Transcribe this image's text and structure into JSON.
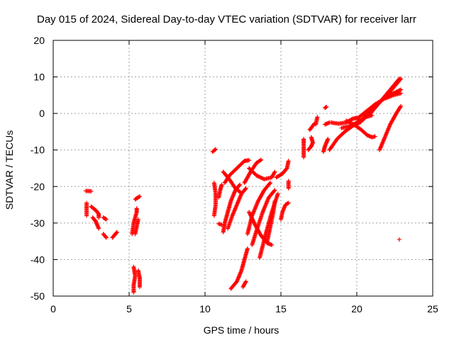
{
  "chart_data": {
    "type": "scatter",
    "title": "Day 015 of 2024, Sidereal Day-to-day VTEC variation (SDTVAR) for receiver larr",
    "xlabel": "GPS time / hours",
    "ylabel": "SDTVAR / TECUs",
    "xlim": [
      0,
      25
    ],
    "ylim": [
      -50,
      20
    ],
    "xticks": [
      0,
      5,
      10,
      15,
      20,
      25
    ],
    "yticks": [
      -50,
      -40,
      -30,
      -20,
      -10,
      0,
      10,
      20
    ],
    "grid": true,
    "marker": "+",
    "color": "#ff0000",
    "series": [
      {
        "name": "SDTVAR",
        "tracks": [
          {
            "points": [
              [
                2.15,
                -21.2
              ],
              [
                2.5,
                -21.3
              ]
            ]
          },
          {
            "points": [
              [
                2.2,
                -24.5
              ],
              [
                2.2,
                -26.5
              ],
              [
                2.2,
                -28.0
              ]
            ]
          },
          {
            "points": [
              [
                2.5,
                -25.5
              ],
              [
                2.8,
                -26.5
              ],
              [
                3.0,
                -27.5
              ],
              [
                3.0,
                -28.5
              ]
            ]
          },
          {
            "points": [
              [
                2.6,
                -28.5
              ],
              [
                2.8,
                -29.5
              ],
              [
                2.9,
                -30.5
              ],
              [
                3.0,
                -31.5
              ]
            ]
          },
          {
            "points": [
              [
                3.3,
                -28.5
              ],
              [
                3.5,
                -29.0
              ]
            ]
          },
          {
            "points": [
              [
                3.3,
                -33.0
              ],
              [
                3.5,
                -34.0
              ]
            ]
          },
          {
            "points": [
              [
                3.9,
                -34.0
              ],
              [
                4.1,
                -33.0
              ],
              [
                4.2,
                -32.5
              ]
            ]
          },
          {
            "points": [
              [
                5.2,
                -33.0
              ],
              [
                5.3,
                -30.0
              ],
              [
                5.5,
                -27.0
              ],
              [
                5.5,
                -26.0
              ]
            ]
          },
          {
            "points": [
              [
                5.4,
                -23.5
              ],
              [
                5.6,
                -23.0
              ],
              [
                5.7,
                -22.7
              ]
            ]
          },
          {
            "points": [
              [
                5.6,
                -29.0
              ],
              [
                5.5,
                -31.0
              ],
              [
                5.4,
                -33.0
              ]
            ]
          },
          {
            "points": [
              [
                5.3,
                -42.0
              ],
              [
                5.4,
                -44.5
              ],
              [
                5.3,
                -47.0
              ],
              [
                5.3,
                -49.0
              ]
            ]
          },
          {
            "points": [
              [
                5.6,
                -43.0
              ],
              [
                5.7,
                -45.0
              ],
              [
                5.7,
                -47.5
              ]
            ]
          },
          {
            "points": [
              [
                10.5,
                -10.5
              ],
              [
                10.7,
                -9.8
              ]
            ]
          },
          {
            "points": [
              [
                10.6,
                -28.0
              ],
              [
                10.7,
                -25.0
              ],
              [
                10.7,
                -22.0
              ],
              [
                10.6,
                -19.0
              ]
            ]
          },
          {
            "points": [
              [
                10.9,
                -23.0
              ],
              [
                11.0,
                -21.0
              ],
              [
                11.1,
                -19.5
              ]
            ]
          },
          {
            "points": [
              [
                10.9,
                -30.2
              ],
              [
                11.1,
                -30.5
              ]
            ]
          },
          {
            "points": [
              [
                11.3,
                -19.0
              ],
              [
                11.6,
                -17.0
              ],
              [
                12.1,
                -15.0
              ],
              [
                12.6,
                -13.0
              ],
              [
                12.9,
                -12.8
              ]
            ]
          },
          {
            "points": [
              [
                11.2,
                -16.0
              ],
              [
                11.6,
                -18.0
              ],
              [
                12.0,
                -20.5
              ],
              [
                12.4,
                -21.8
              ]
            ]
          },
          {
            "points": [
              [
                11.2,
                -32.5
              ],
              [
                11.3,
                -30.0
              ],
              [
                11.5,
                -27.0
              ],
              [
                11.7,
                -24.0
              ],
              [
                12.0,
                -21.0
              ],
              [
                12.3,
                -19.5
              ]
            ]
          },
          {
            "points": [
              [
                11.5,
                -31.5
              ],
              [
                11.8,
                -28.0
              ],
              [
                12.1,
                -25.0
              ],
              [
                12.4,
                -22.0
              ],
              [
                12.7,
                -20.5
              ]
            ]
          },
          {
            "points": [
              [
                11.7,
                -48.0
              ],
              [
                12.1,
                -46.0
              ],
              [
                12.4,
                -43.0
              ],
              [
                12.6,
                -40.0
              ],
              [
                12.8,
                -37.0
              ]
            ]
          },
          {
            "points": [
              [
                12.5,
                -47.5
              ],
              [
                12.7,
                -46.0
              ]
            ]
          },
          {
            "points": [
              [
                12.9,
                -15.0
              ],
              [
                13.4,
                -17.0
              ],
              [
                13.9,
                -18.0
              ],
              [
                14.4,
                -17.5
              ],
              [
                14.6,
                -16.0
              ]
            ]
          },
          {
            "points": [
              [
                12.6,
                -19.0
              ],
              [
                13.0,
                -16.0
              ],
              [
                13.4,
                -13.5
              ],
              [
                13.7,
                -12.7
              ]
            ]
          },
          {
            "points": [
              [
                12.8,
                -33.0
              ],
              [
                13.1,
                -28.0
              ],
              [
                13.5,
                -24.0
              ],
              [
                13.9,
                -21.0
              ],
              [
                14.3,
                -19.0
              ]
            ]
          },
          {
            "points": [
              [
                12.9,
                -27.0
              ],
              [
                13.3,
                -30.5
              ],
              [
                13.7,
                -33.5
              ],
              [
                14.1,
                -35.5
              ],
              [
                14.4,
                -36.0
              ]
            ]
          },
          {
            "points": [
              [
                13.1,
                -36.0
              ],
              [
                13.4,
                -32.0
              ],
              [
                13.8,
                -27.0
              ],
              [
                14.2,
                -23.0
              ],
              [
                14.6,
                -21.0
              ]
            ]
          },
          {
            "points": [
              [
                13.6,
                -39.5
              ],
              [
                14.0,
                -33.0
              ],
              [
                14.4,
                -27.0
              ],
              [
                14.8,
                -22.0
              ]
            ]
          },
          {
            "points": [
              [
                14.1,
                -35.0
              ],
              [
                14.3,
                -31.0
              ],
              [
                14.5,
                -27.0
              ],
              [
                14.6,
                -24.0
              ]
            ]
          },
          {
            "points": [
              [
                14.7,
                -17.5
              ],
              [
                15.1,
                -16.5
              ],
              [
                15.4,
                -15.0
              ],
              [
                15.5,
                -13.0
              ]
            ]
          },
          {
            "points": [
              [
                15.0,
                -29.0
              ],
              [
                15.1,
                -27.0
              ],
              [
                15.3,
                -25.0
              ],
              [
                15.5,
                -24.5
              ]
            ]
          },
          {
            "points": [
              [
                15.5,
                -20.5
              ],
              [
                15.5,
                -18.5
              ]
            ]
          },
          {
            "points": [
              [
                16.5,
                -12.0
              ],
              [
                16.5,
                -10.0
              ],
              [
                16.5,
                -8.0
              ],
              [
                16.5,
                -7.0
              ]
            ]
          },
          {
            "points": [
              [
                16.8,
                -10.0
              ],
              [
                17.0,
                -9.0
              ],
              [
                17.1,
                -8.0
              ],
              [
                17.0,
                -6.5
              ]
            ]
          },
          {
            "points": [
              [
                16.9,
                -4.5
              ],
              [
                17.2,
                -2.8
              ]
            ]
          },
          {
            "points": [
              [
                17.3,
                -3.0
              ],
              [
                17.4,
                -1.0
              ]
            ]
          },
          {
            "points": [
              [
                17.8,
                -10.5
              ],
              [
                17.9,
                -9.0
              ],
              [
                18.0,
                -8.0
              ],
              [
                18.1,
                -7.0
              ]
            ]
          },
          {
            "points": [
              [
                17.9,
                -3.0
              ],
              [
                18.2,
                -2.5
              ]
            ]
          },
          {
            "points": [
              [
                17.9,
                1.5
              ],
              [
                18.0,
                1.8
              ]
            ]
          },
          {
            "points": [
              [
                18.3,
                -2.5
              ],
              [
                18.8,
                -2.8
              ],
              [
                19.3,
                -2.5
              ],
              [
                19.7,
                -1.5
              ],
              [
                20.0,
                -1.2
              ]
            ]
          },
          {
            "points": [
              [
                18.2,
                -10.0
              ],
              [
                18.7,
                -7.0
              ],
              [
                19.2,
                -5.0
              ],
              [
                19.7,
                -3.5
              ],
              [
                20.2,
                -2.5
              ],
              [
                20.6,
                -1.0
              ],
              [
                21.0,
                -0.5
              ]
            ]
          },
          {
            "points": [
              [
                19.0,
                -4.0
              ],
              [
                19.5,
                -3.5
              ],
              [
                20.0,
                -2.5
              ],
              [
                20.4,
                -1.5
              ],
              [
                20.7,
                0.0
              ],
              [
                21.0,
                1.0
              ]
            ]
          },
          {
            "points": [
              [
                19.3,
                -2.0
              ],
              [
                19.8,
                -3.0
              ],
              [
                20.3,
                -4.5
              ],
              [
                20.7,
                -6.0
              ],
              [
                21.0,
                -6.5
              ],
              [
                21.2,
                -6.3
              ]
            ]
          },
          {
            "points": [
              [
                20.0,
                -1.5
              ],
              [
                20.6,
                0.5
              ],
              [
                21.2,
                2.5
              ],
              [
                21.8,
                4.0
              ],
              [
                22.4,
                5.0
              ],
              [
                22.9,
                5.5
              ]
            ]
          },
          {
            "points": [
              [
                20.5,
                -1.0
              ],
              [
                21.0,
                1.0
              ],
              [
                21.5,
                3.0
              ],
              [
                22.0,
                5.0
              ],
              [
                22.5,
                7.5
              ],
              [
                22.9,
                9.5
              ]
            ]
          },
          {
            "points": [
              [
                20.8,
                -0.5
              ],
              [
                21.3,
                2.0
              ],
              [
                21.8,
                4.5
              ],
              [
                22.3,
                7.0
              ],
              [
                22.8,
                9.5
              ]
            ]
          },
          {
            "points": [
              [
                21.5,
                -10.0
              ],
              [
                21.8,
                -7.0
              ],
              [
                22.2,
                -3.0
              ],
              [
                22.6,
                0.0
              ],
              [
                22.9,
                2.0
              ]
            ]
          },
          {
            "points": [
              [
                22.0,
                4.5
              ],
              [
                22.4,
                5.5
              ],
              [
                22.9,
                6.5
              ]
            ]
          },
          {
            "points": [
              [
                22.8,
                -34.5
              ]
            ]
          }
        ]
      }
    ]
  }
}
